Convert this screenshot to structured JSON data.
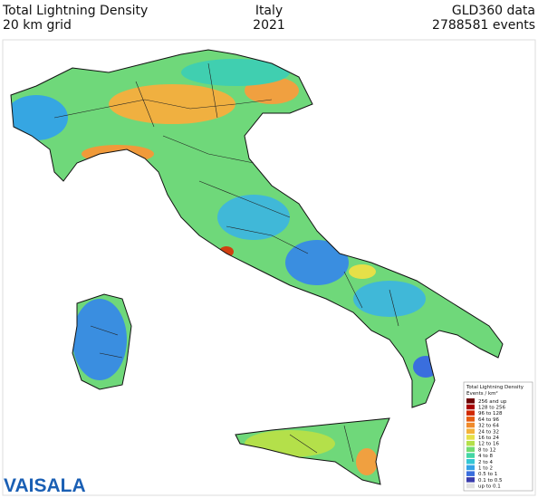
{
  "header": {
    "title": "Total Lightning Density",
    "grid": "20 km grid",
    "region": "Italy",
    "year": "2021",
    "source": "GLD360 data",
    "events": "2788581 events"
  },
  "legend": {
    "title": "Total Lightning Density",
    "units": "Events / km²",
    "items": [
      {
        "label": "256 and up",
        "color": "#6e0000"
      },
      {
        "label": "128 to 256",
        "color": "#a80000"
      },
      {
        "label": "96 to 128",
        "color": "#d02800"
      },
      {
        "label": "64 to 96",
        "color": "#e65c10"
      },
      {
        "label": "32 to 64",
        "color": "#f08a2a"
      },
      {
        "label": "24 to 32",
        "color": "#f4b23a"
      },
      {
        "label": "16 to 24",
        "color": "#e6e048"
      },
      {
        "label": "12 to 16",
        "color": "#b4e04a"
      },
      {
        "label": "8 to 12",
        "color": "#72dc72"
      },
      {
        "label": "4 to 8",
        "color": "#44d6a4"
      },
      {
        "label": "2 to 4",
        "color": "#34c6d4"
      },
      {
        "label": "1 to 2",
        "color": "#34a2e6"
      },
      {
        "label": "0.5 to 1",
        "color": "#3a6ede"
      },
      {
        "label": "0.1 to 0.5",
        "color": "#3a3cac"
      },
      {
        "label": "up to 0.1",
        "color": "#e2e2e2"
      }
    ]
  },
  "logo": "VAISALA"
}
